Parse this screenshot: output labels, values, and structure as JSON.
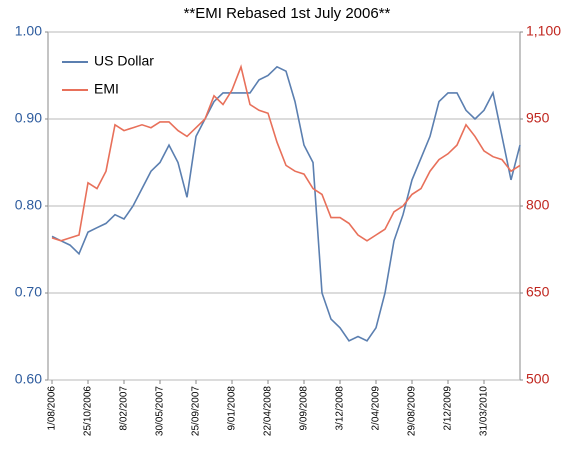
{
  "chart_data": {
    "type": "line",
    "title": "**EMI Rebased 1st July 2006**",
    "categories": [
      "1/08/2006",
      null,
      null,
      null,
      "25/10/2006",
      null,
      null,
      null,
      "8/02/2007",
      null,
      null,
      null,
      "30/05/2007",
      null,
      null,
      null,
      "25/09/2007",
      null,
      null,
      null,
      "9/01/2008",
      null,
      null,
      null,
      "22/04/2008",
      null,
      null,
      null,
      "9/09/2008",
      null,
      null,
      null,
      "3/12/2008",
      null,
      null,
      null,
      "2/04/2009",
      null,
      null,
      null,
      "29/08/2009",
      null,
      null,
      null,
      "2/12/2009",
      null,
      null,
      null,
      "31/03/2010",
      null,
      null,
      null,
      null
    ],
    "series": [
      {
        "name": "US Dollar",
        "color": "#5b7fb0",
        "values": [
          0.765,
          0.76,
          0.755,
          0.745,
          0.77,
          0.775,
          0.78,
          0.79,
          0.785,
          0.8,
          0.82,
          0.84,
          0.85,
          0.87,
          0.85,
          0.81,
          0.88,
          0.9,
          0.92,
          0.93,
          0.93,
          0.93,
          0.93,
          0.945,
          0.95,
          0.96,
          0.955,
          0.92,
          0.87,
          0.85,
          0.7,
          0.67,
          0.66,
          0.645,
          0.65,
          0.645,
          0.66,
          0.7,
          0.76,
          0.79,
          0.83,
          0.855,
          0.88,
          0.92,
          0.93,
          0.93,
          0.91,
          0.9,
          0.91,
          0.93,
          0.88,
          0.83,
          0.87
        ]
      },
      {
        "name": "EMI",
        "color": "#e8705a",
        "axis": "y2",
        "values": [
          745,
          740,
          745,
          750,
          840,
          830,
          860,
          940,
          930,
          935,
          940,
          935,
          945,
          945,
          930,
          920,
          935,
          950,
          990,
          975,
          1000,
          1040,
          975,
          965,
          960,
          910,
          870,
          860,
          855,
          830,
          820,
          780,
          780,
          770,
          750,
          740,
          750,
          760,
          790,
          800,
          820,
          830,
          860,
          880,
          890,
          905,
          940,
          920,
          895,
          885,
          880,
          860,
          870
        ]
      }
    ],
    "ylim": [
      0.6,
      1.0
    ],
    "yticks": [
      {
        "value": 0.6,
        "label": "0.60"
      },
      {
        "value": 0.7,
        "label": "0.70"
      },
      {
        "value": 0.8,
        "label": "0.80"
      },
      {
        "value": 0.9,
        "label": "0.90"
      },
      {
        "value": 1.0,
        "label": "1.00"
      }
    ],
    "y2lim": [
      500,
      1100
    ],
    "y2ticks": [
      500,
      650,
      800,
      950,
      {
        "value": 1100,
        "label": "1,100"
      }
    ],
    "y_color": "#2e5c9e",
    "y2_color": "#c0261f",
    "grid": true,
    "legend": "upper left"
  }
}
